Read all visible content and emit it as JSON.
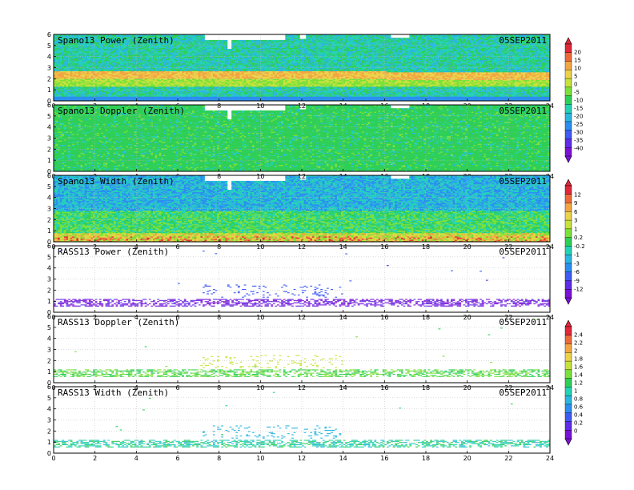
{
  "colors": {
    "power_scale": [
      "#7a12d6",
      "#5f2ce8",
      "#3f5bf2",
      "#2b8ef0",
      "#2bb7e0",
      "#24d3b4",
      "#2fcf57",
      "#7be13a",
      "#c7e23c",
      "#ecd24a",
      "#f2a642",
      "#ec6a3a",
      "#e0283a"
    ],
    "doppler_scale": [
      "#7a12d6",
      "#5f2ce8",
      "#3f5bf2",
      "#2b8ef0",
      "#2bb7e0",
      "#24d3b4",
      "#2fcf57",
      "#7be13a",
      "#c7e23c",
      "#ecd24a",
      "#f2a642",
      "#ec6a3a",
      "#e0283a"
    ]
  },
  "chart_data": [
    {
      "type": "heatmap",
      "title": "Spano13 Power (Zenith)",
      "date": "05SEP2011",
      "x_ticks": [
        "0",
        "2",
        "4",
        "6",
        "8",
        "10",
        "12",
        "14",
        "16",
        "18",
        "20",
        "22",
        "24"
      ],
      "y_ticks": [
        "0",
        "1",
        "2",
        "3",
        "4",
        "5",
        "6"
      ],
      "xlim": [
        0,
        24
      ],
      "ylim": [
        0,
        6
      ],
      "pattern": "dense",
      "band_height": 2.3,
      "band_value": 12,
      "background_value": -10
    },
    {
      "type": "heatmap",
      "title": "Spano13 Doppler (Zenith)",
      "date": "05SEP2011",
      "x_ticks": [
        "0",
        "2",
        "4",
        "6",
        "8",
        "10",
        "12",
        "14",
        "16",
        "18",
        "20",
        "22",
        "24"
      ],
      "y_ticks": [
        "0",
        "1",
        "2",
        "3",
        "4",
        "5",
        "6"
      ],
      "xlim": [
        0,
        24
      ],
      "ylim": [
        0,
        6
      ],
      "pattern": "dense-uniform",
      "background_value": 0
    },
    {
      "type": "heatmap",
      "title": "Spano13 Width (Zenith)",
      "date": "05SEP2011",
      "x_ticks": [
        "0",
        "2",
        "4",
        "6",
        "8",
        "10",
        "12",
        "14",
        "16",
        "18",
        "20",
        "22",
        "24"
      ],
      "y_ticks": [
        "0",
        "1",
        "2",
        "3",
        "4",
        "5",
        "6"
      ],
      "xlim": [
        0,
        24
      ],
      "ylim": [
        0,
        6
      ],
      "pattern": "dense-width",
      "background_value": -1
    },
    {
      "type": "heatmap",
      "title": "RASS13 Power (Zenith)",
      "date": "05SEP2011",
      "x_ticks": [
        "0",
        "2",
        "4",
        "6",
        "8",
        "10",
        "12",
        "14",
        "16",
        "18",
        "20",
        "22",
        "24"
      ],
      "y_ticks": [
        "0",
        "1",
        "2",
        "3",
        "4",
        "5",
        "6"
      ],
      "xlim": [
        0,
        24
      ],
      "ylim": [
        0,
        6
      ],
      "pattern": "sparse",
      "low_band": [
        0.6,
        1.1
      ],
      "mid_cluster": [
        7,
        14,
        1.3,
        2.4
      ],
      "background_value": -9
    },
    {
      "type": "heatmap",
      "title": "RASS13 Doppler (Zenith)",
      "date": "05SEP2011",
      "x_ticks": [
        "0",
        "2",
        "4",
        "6",
        "8",
        "10",
        "12",
        "14",
        "16",
        "18",
        "20",
        "22",
        "24"
      ],
      "y_ticks": [
        "0",
        "1",
        "2",
        "3",
        "4",
        "5",
        "6"
      ],
      "xlim": [
        0,
        24
      ],
      "ylim": [
        0,
        6
      ],
      "pattern": "sparse",
      "low_band": [
        0.6,
        1.1
      ],
      "mid_cluster": [
        7,
        14,
        1.3,
        2.4
      ],
      "background_value": 1.3
    },
    {
      "type": "heatmap",
      "title": "RASS13 Width (Zenith)",
      "date": "05SEP2011",
      "x_ticks": [
        "0",
        "2",
        "4",
        "6",
        "8",
        "10",
        "12",
        "14",
        "16",
        "18",
        "20",
        "22",
        "24"
      ],
      "y_ticks": [
        "0",
        "1",
        "2",
        "3",
        "4",
        "5",
        "6"
      ],
      "xlim": [
        0,
        24
      ],
      "ylim": [
        0,
        6
      ],
      "pattern": "sparse",
      "low_band": [
        0.6,
        1.1
      ],
      "mid_cluster": [
        7,
        14,
        1.3,
        2.4
      ],
      "background_value": 1.0
    }
  ],
  "colorbars": [
    {
      "labels": [
        "20",
        "15",
        "10",
        "5",
        "0",
        "-5",
        "-10",
        "-15",
        "-20",
        "-25",
        "-30",
        "-35",
        "-40"
      ],
      "colors": [
        "#e0283a",
        "#ec6a3a",
        "#f2a642",
        "#ecd24a",
        "#c7e23c",
        "#7be13a",
        "#2fcf57",
        "#24d3b4",
        "#2bb7e0",
        "#2b8ef0",
        "#3f5bf2",
        "#5f2ce8",
        "#7a12d6"
      ]
    },
    {
      "labels": [
        "12",
        "9",
        "6",
        "3",
        "1",
        "0.2",
        "-0.2",
        "-1",
        "-3",
        "-6",
        "-9",
        "-12"
      ],
      "colors": [
        "#e0283a",
        "#ec6a3a",
        "#f2a642",
        "#ecd24a",
        "#c7e23c",
        "#7be13a",
        "#2fcf57",
        "#24d3b4",
        "#2bb7e0",
        "#2b8ef0",
        "#3f5bf2",
        "#5f2ce8",
        "#7a12d6"
      ]
    },
    {
      "labels": [
        "2.4",
        "2.2",
        "2",
        "1.8",
        "1.6",
        "1.4",
        "1.2",
        "1",
        "0.8",
        "0.6",
        "0.4",
        "0.2",
        "0"
      ],
      "colors": [
        "#e0283a",
        "#ec6a3a",
        "#f2a642",
        "#ecd24a",
        "#c7e23c",
        "#7be13a",
        "#2fcf57",
        "#24d3b4",
        "#2bb7e0",
        "#2b8ef0",
        "#3f5bf2",
        "#5f2ce8",
        "#7a12d6"
      ]
    }
  ]
}
